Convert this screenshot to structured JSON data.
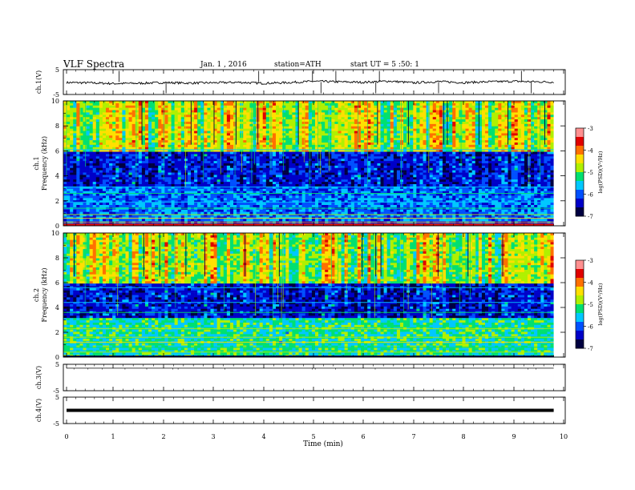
{
  "header": {
    "title": "VLF Spectra",
    "date": "Jan. 1 , 2016",
    "station": "station=ATH",
    "start": "start UT = 5 :50: 1"
  },
  "colorbar": {
    "label": "log(PSD)(V²/Hz)",
    "ticks": [
      "-3",
      "-4",
      "-5",
      "-6",
      "-7"
    ]
  },
  "colors": {
    "scale": [
      "#000040",
      "#0000c8",
      "#0050ff",
      "#00c8ff",
      "#00e070",
      "#b0f000",
      "#ffe000",
      "#ff7000",
      "#e00000",
      "#ff9090"
    ]
  },
  "chart_data": [
    {
      "type": "line",
      "ylabel": "ch.1(V)",
      "yticks": [
        "5",
        "-5"
      ],
      "ylim": [
        -5,
        5
      ],
      "xlim": [
        0,
        10
      ],
      "x": [
        0,
        0.5,
        1,
        1.5,
        2,
        2.5,
        3,
        3.5,
        4,
        4.5,
        5,
        5.5,
        6,
        6.5,
        7,
        7.5,
        8,
        8.5,
        9,
        9.5,
        9.8
      ],
      "values": [
        -0.2,
        -0.3,
        -0.6,
        -0.5,
        -0.2,
        -0.4,
        -0.3,
        -0.1,
        -0.5,
        -0.2,
        0.3,
        0.1,
        -0.1,
        0.4,
        -0.3,
        0.2,
        -0.2,
        0.1,
        0.3,
        0.1,
        0.0
      ]
    },
    {
      "type": "heatmap",
      "ylabel": "ch.1\nFrequency (kHz)",
      "yticks": [
        "10",
        "8",
        "6",
        "4",
        "2",
        "0"
      ],
      "ylim": [
        0,
        10
      ],
      "xlim": [
        0,
        10
      ],
      "scale": "log(PSD)(V²/Hz)",
      "zlim": [
        -7,
        -3
      ]
    },
    {
      "type": "heatmap",
      "ylabel": "ch.2\nFrequency (kHz)",
      "yticks": [
        "10",
        "8",
        "6",
        "4",
        "2",
        "0"
      ],
      "ylim": [
        0,
        10
      ],
      "xlim": [
        0,
        10
      ],
      "scale": "log(PSD)(V²/Hz)",
      "zlim": [
        -7,
        -3
      ]
    },
    {
      "type": "line",
      "ylabel": "ch.3(V)",
      "yticks": [
        "5",
        "-5"
      ],
      "ylim": [
        -5,
        5
      ],
      "xlim": [
        0,
        10
      ],
      "x": [
        0,
        9.8
      ],
      "values": [
        3.5,
        3.5
      ]
    },
    {
      "type": "line",
      "ylabel": "ch.4(V)",
      "yticks": [
        "5",
        "-5"
      ],
      "ylim": [
        -5,
        5
      ],
      "xlim": [
        0,
        10
      ],
      "x": [
        0,
        9.8
      ],
      "values": [
        0,
        0
      ]
    }
  ],
  "xaxis": {
    "label": "Time (min)",
    "ticks": [
      "0",
      "1",
      "2",
      "3",
      "4",
      "5",
      "6",
      "7",
      "8",
      "9",
      "10"
    ]
  }
}
